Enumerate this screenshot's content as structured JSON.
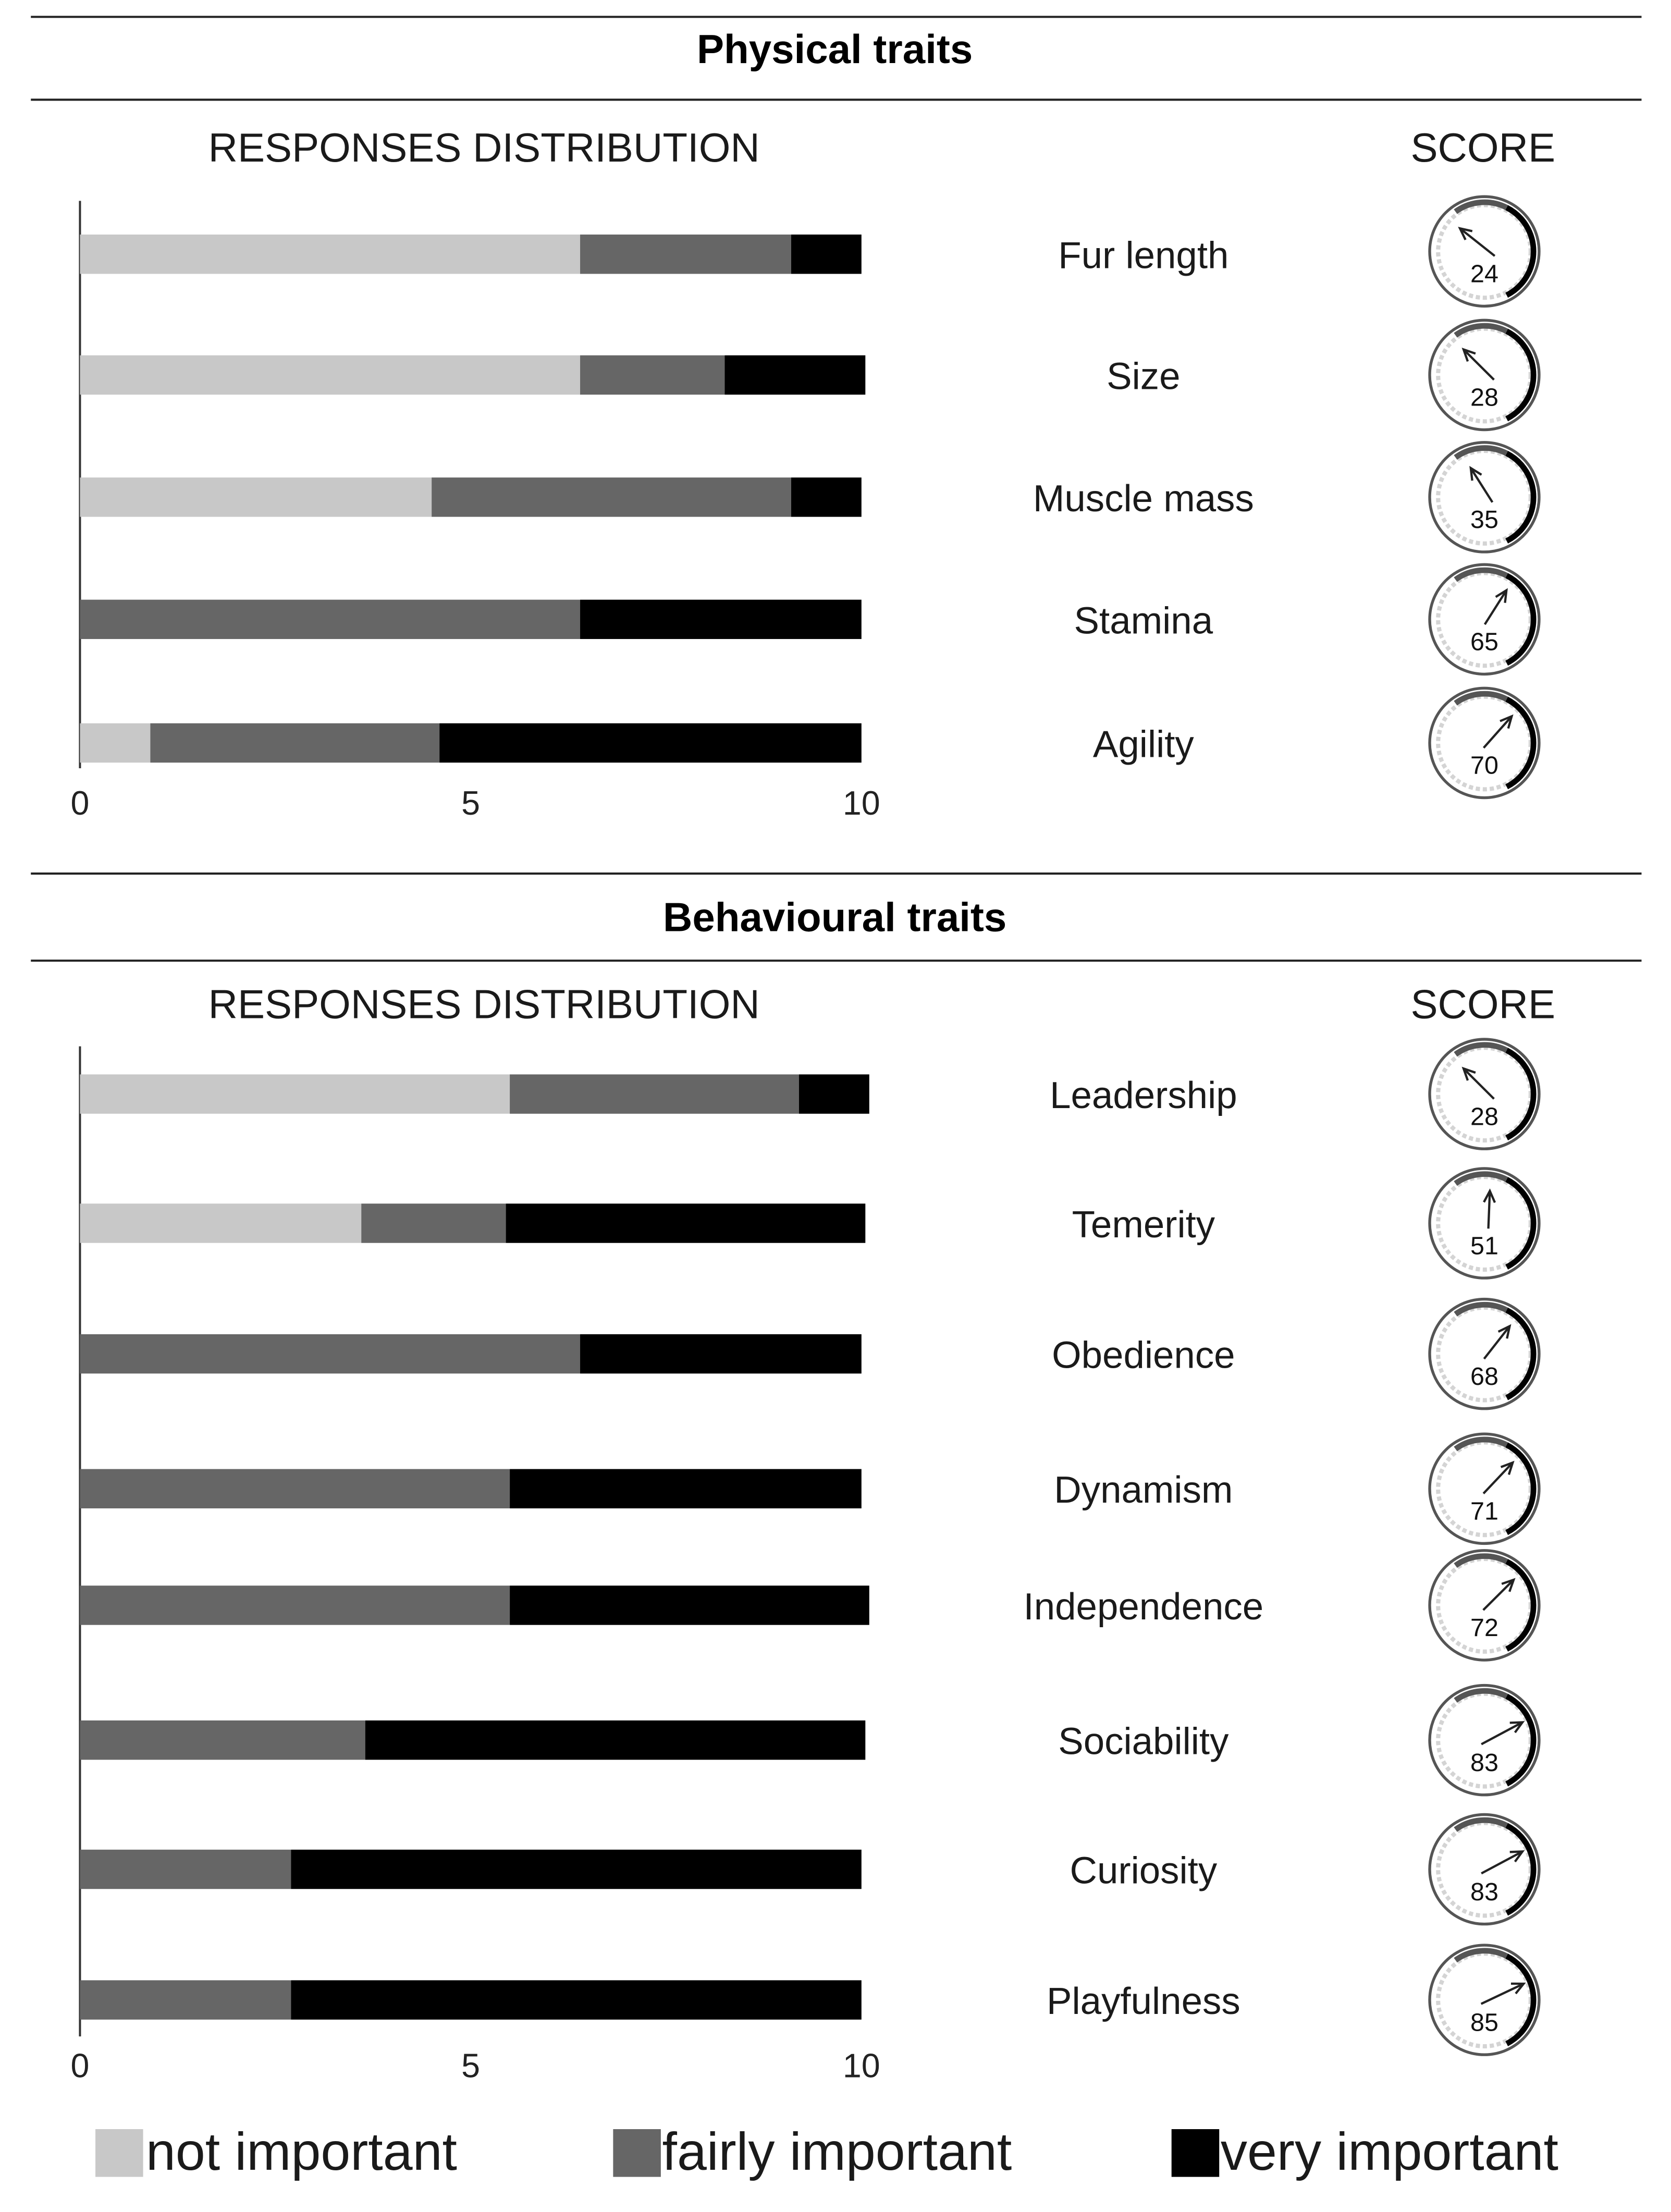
{
  "figure": {
    "legend": [
      {
        "label": "not important",
        "color": "#c8c8c8"
      },
      {
        "label": "fairly important",
        "color": "#666666"
      },
      {
        "label": "very important",
        "color": "#000000"
      }
    ]
  },
  "chart_data": [
    {
      "type": "bar",
      "stacked": true,
      "orientation": "horizontal",
      "title": "Physical traits",
      "distribution_header": "RESPONSES DISTRIBUTION",
      "score_header": "SCORE",
      "xlim": [
        0,
        10
      ],
      "xticks": [
        "0",
        "5",
        "10"
      ],
      "categories": [
        "Fur length",
        "Size",
        "Muscle mass",
        "Stamina",
        "Agility"
      ],
      "series": [
        {
          "name": "not important",
          "color": "#c8c8c8",
          "values": [
            6.4,
            6.4,
            4.5,
            0,
            0.9
          ]
        },
        {
          "name": "fairly important",
          "color": "#666666",
          "values": [
            2.7,
            1.85,
            4.6,
            6.4,
            3.7
          ]
        },
        {
          "name": "very important",
          "color": "#000000",
          "values": [
            0.9,
            1.8,
            0.9,
            3.6,
            5.4
          ]
        }
      ],
      "scores": [
        24,
        28,
        35,
        65,
        70
      ]
    },
    {
      "type": "bar",
      "stacked": true,
      "orientation": "horizontal",
      "title": "Behavioural traits",
      "distribution_header": "RESPONSES DISTRIBUTION",
      "score_header": "SCORE",
      "xlim": [
        0,
        10
      ],
      "xticks": [
        "0",
        "5",
        "10"
      ],
      "categories": [
        "Leadership",
        "Temerity",
        "Obedience",
        "Dynamism",
        "Independence",
        "Sociability",
        "Curiosity",
        "Playfulness"
      ],
      "series": [
        {
          "name": "not important",
          "color": "#c8c8c8",
          "values": [
            5.5,
            3.6,
            0,
            0,
            0,
            0,
            0,
            0
          ]
        },
        {
          "name": "fairly important",
          "color": "#666666",
          "values": [
            3.7,
            1.85,
            6.4,
            5.5,
            5.5,
            3.65,
            2.7,
            2.7
          ]
        },
        {
          "name": "very important",
          "color": "#000000",
          "values": [
            0.9,
            4.6,
            3.6,
            4.5,
            4.6,
            6.4,
            7.3,
            7.3
          ]
        }
      ],
      "scores": [
        28,
        51,
        68,
        71,
        72,
        83,
        83,
        85
      ]
    }
  ]
}
